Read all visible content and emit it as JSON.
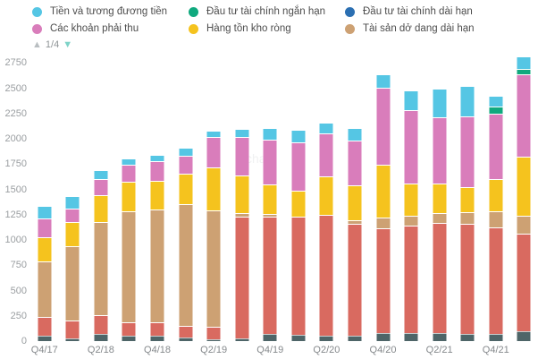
{
  "legend": {
    "items": [
      {
        "label": "Tiền và tương đương tiền",
        "color": "#55C6E4"
      },
      {
        "label": "Đầu tư tài chính ngắn hạn",
        "color": "#10A97E"
      },
      {
        "label": "Đầu tư tài chính dài hạn",
        "color": "#2B6FB2"
      },
      {
        "label": "Các khoản phải thu",
        "color": "#D97DBB"
      },
      {
        "label": "Hàng tồn kho ròng",
        "color": "#F5C31E"
      },
      {
        "label": "Tài sản dở dang dài hạn",
        "color": "#CDA173"
      }
    ],
    "pagination": {
      "current_page_label": "1/4",
      "up_arrow": "disabled-gray",
      "down_arrow": "active-teal"
    }
  },
  "watermark": "chart",
  "chart_data": {
    "type": "bar",
    "stacked": true,
    "grid": false,
    "legend_position": "top",
    "ylim": [
      0,
      2850
    ],
    "y_ticks": [
      0,
      250,
      500,
      750,
      1000,
      1250,
      1500,
      1750,
      2000,
      2250,
      2500,
      2750
    ],
    "categories": [
      "Q4/17",
      "Q1/18",
      "Q2/18",
      "Q3/18",
      "Q4/18",
      "Q1/19",
      "Q2/19",
      "Q3/19",
      "Q4/19",
      "Q1/20",
      "Q2/20",
      "Q3/20",
      "Q4/20",
      "Q1/21",
      "Q2/21",
      "Q3/21",
      "Q4/21",
      "Q1/22"
    ],
    "x_tick_labels": [
      "Q4/17",
      "Q2/18",
      "Q4/18",
      "Q2/19",
      "Q4/19",
      "Q2/20",
      "Q4/20",
      "Q2/21",
      "Q4/21"
    ],
    "series": [
      {
        "name": "unlabeled-dark-slate-series",
        "label_visible": false,
        "color": "#4E6568",
        "values": [
          45,
          20,
          65,
          40,
          45,
          30,
          10,
          20,
          60,
          55,
          45,
          40,
          70,
          70,
          70,
          60,
          65,
          90
        ]
      },
      {
        "name": "unlabeled-red-series",
        "label_visible": false,
        "color": "#D96A60",
        "values": [
          185,
          175,
          185,
          135,
          130,
          115,
          120,
          1200,
          1160,
          1165,
          1190,
          1115,
          1040,
          1060,
          1090,
          1090,
          1050,
          965
        ]
      },
      {
        "name": "Tài sản dở dang dài hạn",
        "label_visible": true,
        "color": "#CDA173",
        "values": [
          540,
          730,
          910,
          1090,
          1110,
          1190,
          1145,
          25,
          15,
          0,
          0,
          25,
          90,
          90,
          90,
          110,
          155,
          170
        ]
      },
      {
        "name": "Hàng tồn kho ròng",
        "label_visible": true,
        "color": "#F5C31E",
        "values": [
          230,
          225,
          255,
          280,
          275,
          295,
          420,
          370,
          285,
          250,
          380,
          330,
          520,
          315,
          280,
          240,
          310,
          575
        ]
      },
      {
        "name": "Các khoản phải thu",
        "label_visible": true,
        "color": "#D97DBB",
        "values": [
          175,
          125,
          150,
          160,
          185,
          170,
          285,
          370,
          435,
          470,
          415,
          440,
          750,
          710,
          650,
          690,
          630,
          800
        ]
      },
      {
        "name": "Đầu tư tài chính dài hạn",
        "label_visible": true,
        "color": "#2B6FB2",
        "values": [
          0,
          0,
          0,
          0,
          0,
          0,
          0,
          0,
          0,
          0,
          0,
          0,
          0,
          0,
          0,
          0,
          0,
          0
        ]
      },
      {
        "name": "Đầu tư tài chính ngắn hạn",
        "label_visible": true,
        "color": "#10A97E",
        "values": [
          0,
          0,
          0,
          0,
          0,
          0,
          0,
          0,
          0,
          0,
          0,
          0,
          0,
          0,
          0,
          0,
          65,
          50
        ]
      },
      {
        "name": "Tiền và tương đương tiền",
        "label_visible": true,
        "color": "#55C6E4",
        "values": [
          120,
          115,
          80,
          60,
          50,
          70,
          55,
          65,
          110,
          110,
          90,
          110,
          125,
          190,
          270,
          285,
          95,
          115
        ]
      }
    ]
  }
}
